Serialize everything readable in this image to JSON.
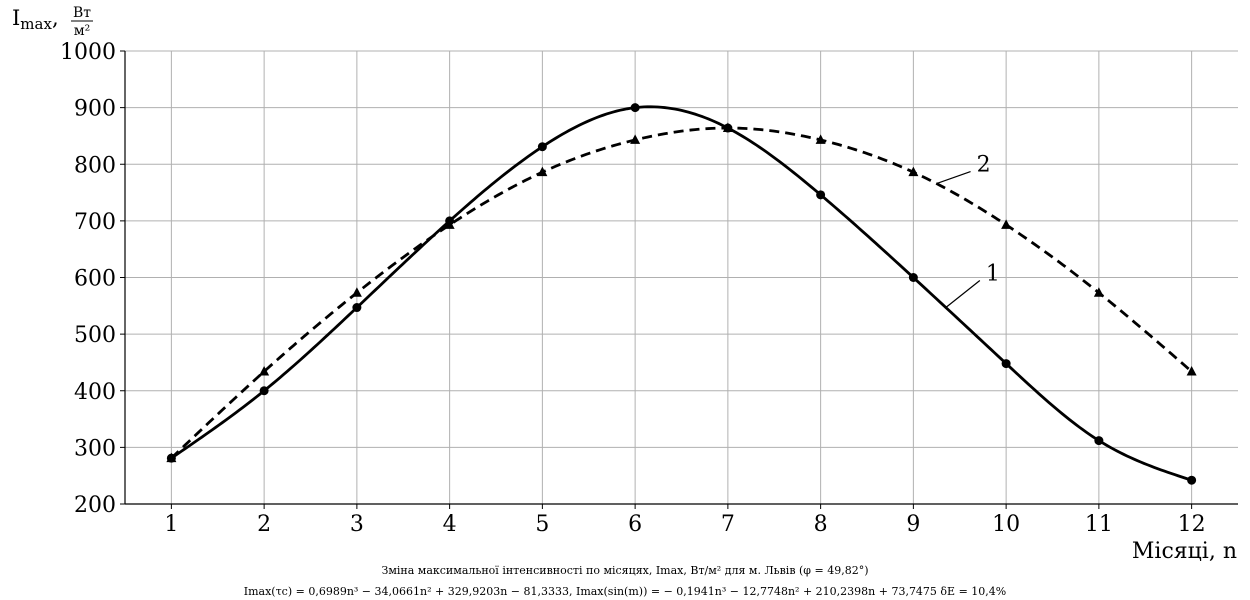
{
  "chart_data": {
    "type": "line",
    "title": "",
    "xlabel": "Місяці, n",
    "ylabel": "Imax, Вт/м²",
    "ylabel_main": "I",
    "ylabel_sub": "max",
    "ylabel_unit_num": "Вт",
    "ylabel_unit_den": "м²",
    "xlim": [
      0.5,
      12.5
    ],
    "ylim": [
      200,
      1000
    ],
    "x": [
      1,
      2,
      3,
      4,
      5,
      6,
      7,
      8,
      9,
      10,
      11,
      12
    ],
    "xticks": [
      "1",
      "2",
      "3",
      "4",
      "5",
      "6",
      "7",
      "8",
      "9",
      "10",
      "11",
      "12"
    ],
    "yticks": [
      200,
      300,
      400,
      500,
      600,
      700,
      800,
      900,
      1000
    ],
    "grid": true,
    "series": [
      {
        "name": "1",
        "style": "solid",
        "marker": "circle",
        "values": [
          281,
          400,
          547,
          700,
          831,
          900,
          864,
          746,
          600,
          448,
          312,
          242
        ]
      },
      {
        "name": "2",
        "style": "dashed",
        "marker": "triangle",
        "values": [
          281,
          434,
          573,
          693,
          786,
          843,
          864,
          843,
          786,
          693,
          573,
          434
        ]
      }
    ],
    "annotations": [
      {
        "text": "1",
        "series": 0,
        "point_x": 9.35
      },
      {
        "text": "2",
        "series": 1,
        "point_x": 9.25
      }
    ],
    "colors": {
      "line": "#000000",
      "grid": "#b0b0b0"
    }
  },
  "caption": {
    "line1": "Зміна максимальної інтенсивності по місяцях, Imax, Вт/м² для м. Львів (φ = 49,82°)",
    "line2": "Imax(τc) = 0,6989n³ − 34,0661n² + 329,9203n − 81,3333,        Imax(sin(m)) = − 0,1941n³ − 12,7748n² + 210,2398n + 73,7475     δE = 10,4%"
  }
}
